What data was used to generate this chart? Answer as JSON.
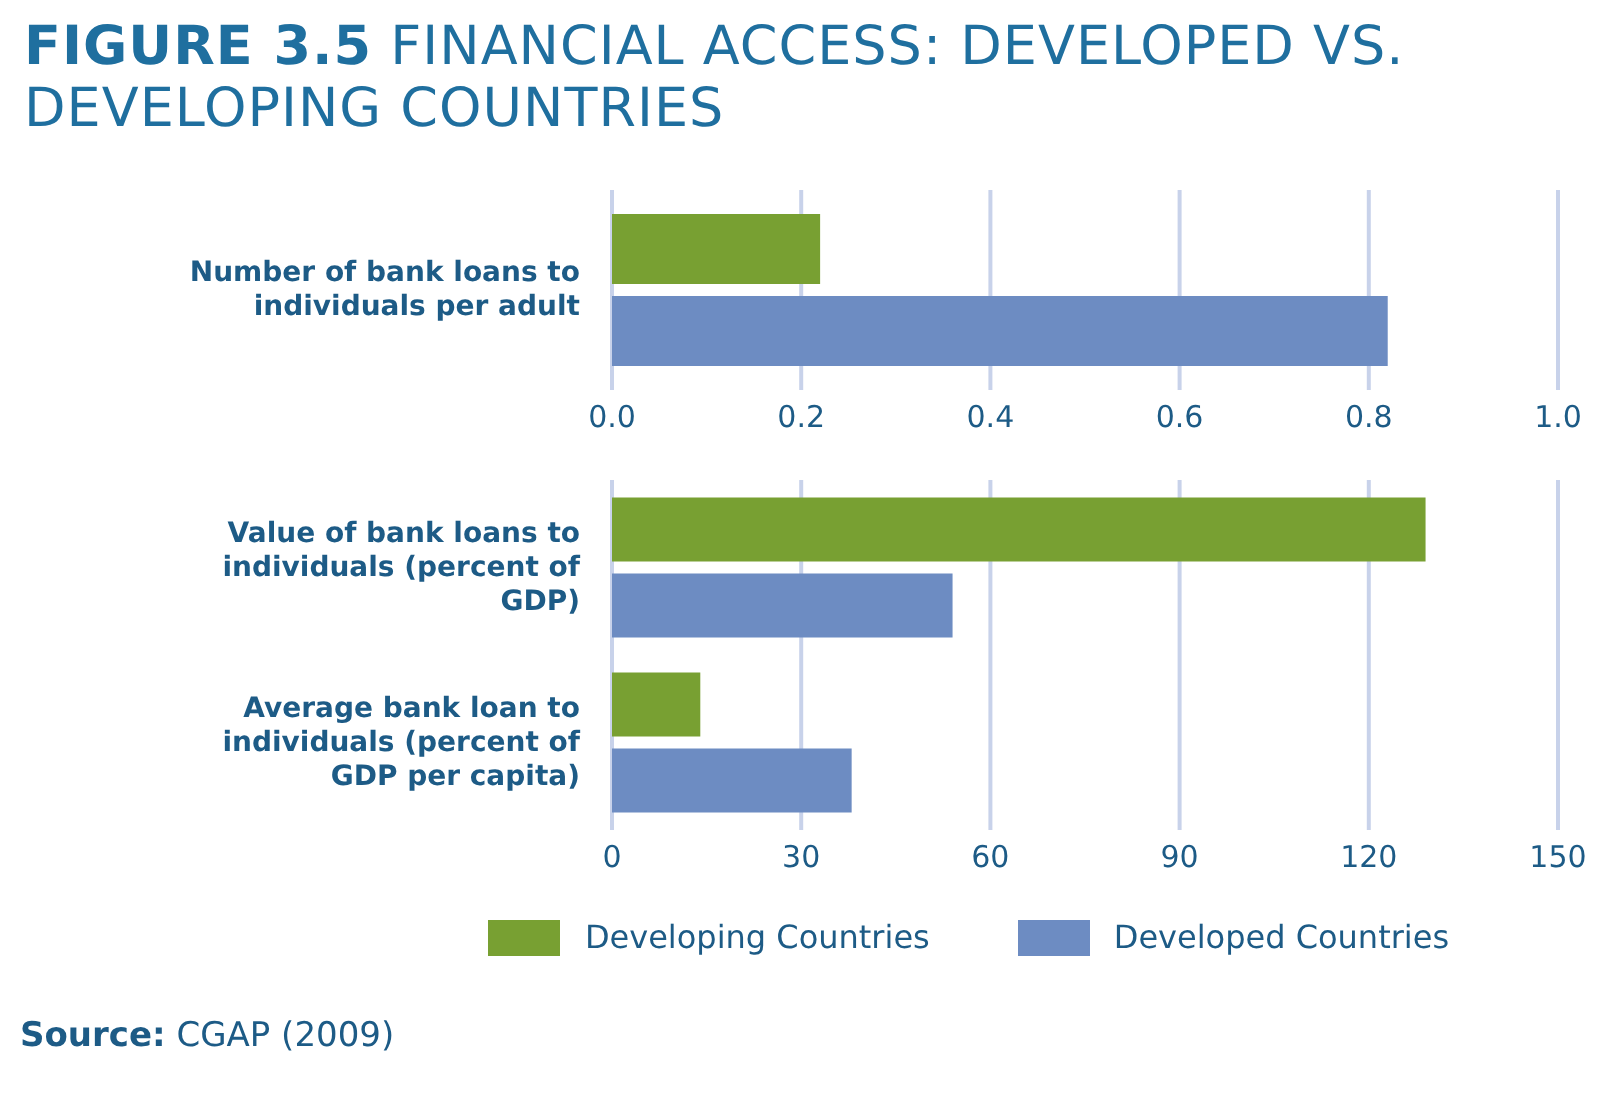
{
  "chart_data": [
    {
      "type": "bar",
      "orientation": "horizontal",
      "title": "FIGURE 3.5 FINANCIAL ACCESS: DEVELOPED VS. DEVELOPING COUNTRIES",
      "categories": [
        "Number of bank loans to individuals per adult"
      ],
      "series": [
        {
          "color": "#78a032",
          "values": [
            0.22
          ]
        },
        {
          "color": "#6d8cc2",
          "values": [
            0.82
          ]
        }
      ],
      "xlim": [
        0,
        1
      ],
      "xticks": [
        {
          "value": 0,
          "label": "0.0"
        },
        0.2,
        0.4,
        0.6,
        0.8,
        {
          "value": 1,
          "label": "1.0"
        }
      ],
      "grid": "x"
    },
    {
      "type": "bar",
      "orientation": "horizontal",
      "categories": [
        "Value of bank loans to individuals (percent of GDP)",
        "Average bank loan to individuals (percent of GDP per capita)"
      ],
      "series": [
        {
          "name": "Developing Countries",
          "color": "#78a032",
          "values": [
            129,
            14
          ]
        },
        {
          "name": "Developed Countries",
          "color": "#6d8cc2",
          "values": [
            54,
            38
          ]
        }
      ],
      "xlim": [
        0,
        150
      ],
      "xticks": [
        0,
        30,
        60,
        90,
        120,
        150
      ],
      "grid": "x",
      "legend": "bottom",
      "annotations": [
        "Source: CGAP (2009)"
      ]
    }
  ]
}
